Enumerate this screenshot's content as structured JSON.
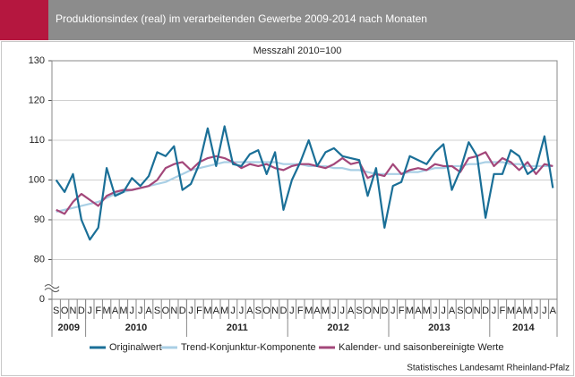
{
  "chart_data": {
    "type": "line",
    "title": "Produktionsindex (real) im verarbeitenden Gewerbe 2009-2014 nach Monaten",
    "subtitle": "Messzahl 2010=100",
    "source": "Statistisches Landesamt Rheinland-Pfalz",
    "categories": [
      "S",
      "O",
      "N",
      "D",
      "J",
      "F",
      "M",
      "A",
      "M",
      "J",
      "J",
      "A",
      "S",
      "O",
      "N",
      "D",
      "J",
      "F",
      "M",
      "A",
      "M",
      "J",
      "J",
      "A",
      "S",
      "O",
      "N",
      "D",
      "J",
      "F",
      "M",
      "A",
      "M",
      "J",
      "J",
      "A",
      "S",
      "O",
      "N",
      "D",
      "J",
      "F",
      "M",
      "A",
      "M",
      "J",
      "J",
      "A",
      "S",
      "O",
      "N",
      "D",
      "J",
      "F",
      "M",
      "A",
      "M",
      "J",
      "J",
      "A"
    ],
    "years": [
      "2009",
      "2010",
      "2011",
      "2012",
      "2013",
      "2014"
    ],
    "ylim": [
      0,
      130
    ],
    "yticks": [
      0,
      80,
      90,
      100,
      110,
      120,
      130
    ],
    "axis_break": true,
    "grid": true,
    "series": [
      {
        "name": "Originalwert",
        "color": "#1a6f97",
        "width": 2.2,
        "values": [
          100,
          97,
          101.5,
          90,
          85,
          88,
          103,
          96,
          97,
          100.5,
          98.5,
          101,
          107,
          106,
          108.5,
          97.5,
          99,
          104,
          113,
          103.5,
          113.5,
          104,
          103.5,
          106.5,
          107.5,
          101.5,
          107,
          92.5,
          100,
          104.5,
          110,
          103.5,
          107,
          108,
          106,
          105.5,
          105,
          96,
          103,
          88,
          98.5,
          99.5,
          106,
          105,
          104,
          107,
          109,
          97.5,
          102.5,
          109.5,
          106,
          90.5,
          101.5,
          101.5,
          107.5,
          106,
          101.5,
          103,
          111,
          98
        ]
      },
      {
        "name": "Trend-Konjunktur-Komponente",
        "color": "#a9cfe5",
        "width": 2.2,
        "values": [
          92,
          92.5,
          93,
          93.5,
          94,
          94.5,
          95.5,
          96.5,
          97,
          97.5,
          98,
          98.5,
          99,
          99.5,
          100.5,
          101.5,
          102.5,
          103,
          103.5,
          104,
          104.5,
          104.5,
          104.5,
          104.5,
          104.5,
          104.5,
          104.5,
          104,
          104,
          104,
          103.5,
          103.5,
          103.5,
          103,
          103,
          102.5,
          102.5,
          102,
          101.5,
          101.5,
          101.5,
          101.5,
          102,
          102,
          102.5,
          103,
          103,
          103.5,
          103.5,
          104,
          104,
          104.5,
          104.5,
          104.5,
          104,
          104,
          103.5,
          103.5,
          103.5,
          103.5
        ]
      },
      {
        "name": "Kalender- und saisonbereinigte Werte",
        "color": "#a3477a",
        "width": 2.2,
        "values": [
          92.5,
          91.5,
          94.5,
          96.5,
          95,
          93.5,
          96,
          97,
          97.5,
          97.5,
          98,
          98.5,
          100,
          103,
          104,
          104.5,
          102.5,
          104.5,
          105.5,
          106,
          105.5,
          104.5,
          103,
          104,
          103.5,
          104,
          103,
          102.5,
          103.5,
          104,
          104,
          103.5,
          103,
          104,
          105.5,
          104,
          104.5,
          100.5,
          101.5,
          101,
          104,
          101.5,
          102.5,
          103,
          102.5,
          104,
          103.5,
          103.5,
          102,
          105.5,
          106,
          107,
          103.5,
          105.5,
          104.5,
          102.5,
          104.5,
          101.5,
          104,
          103.5
        ]
      }
    ]
  }
}
